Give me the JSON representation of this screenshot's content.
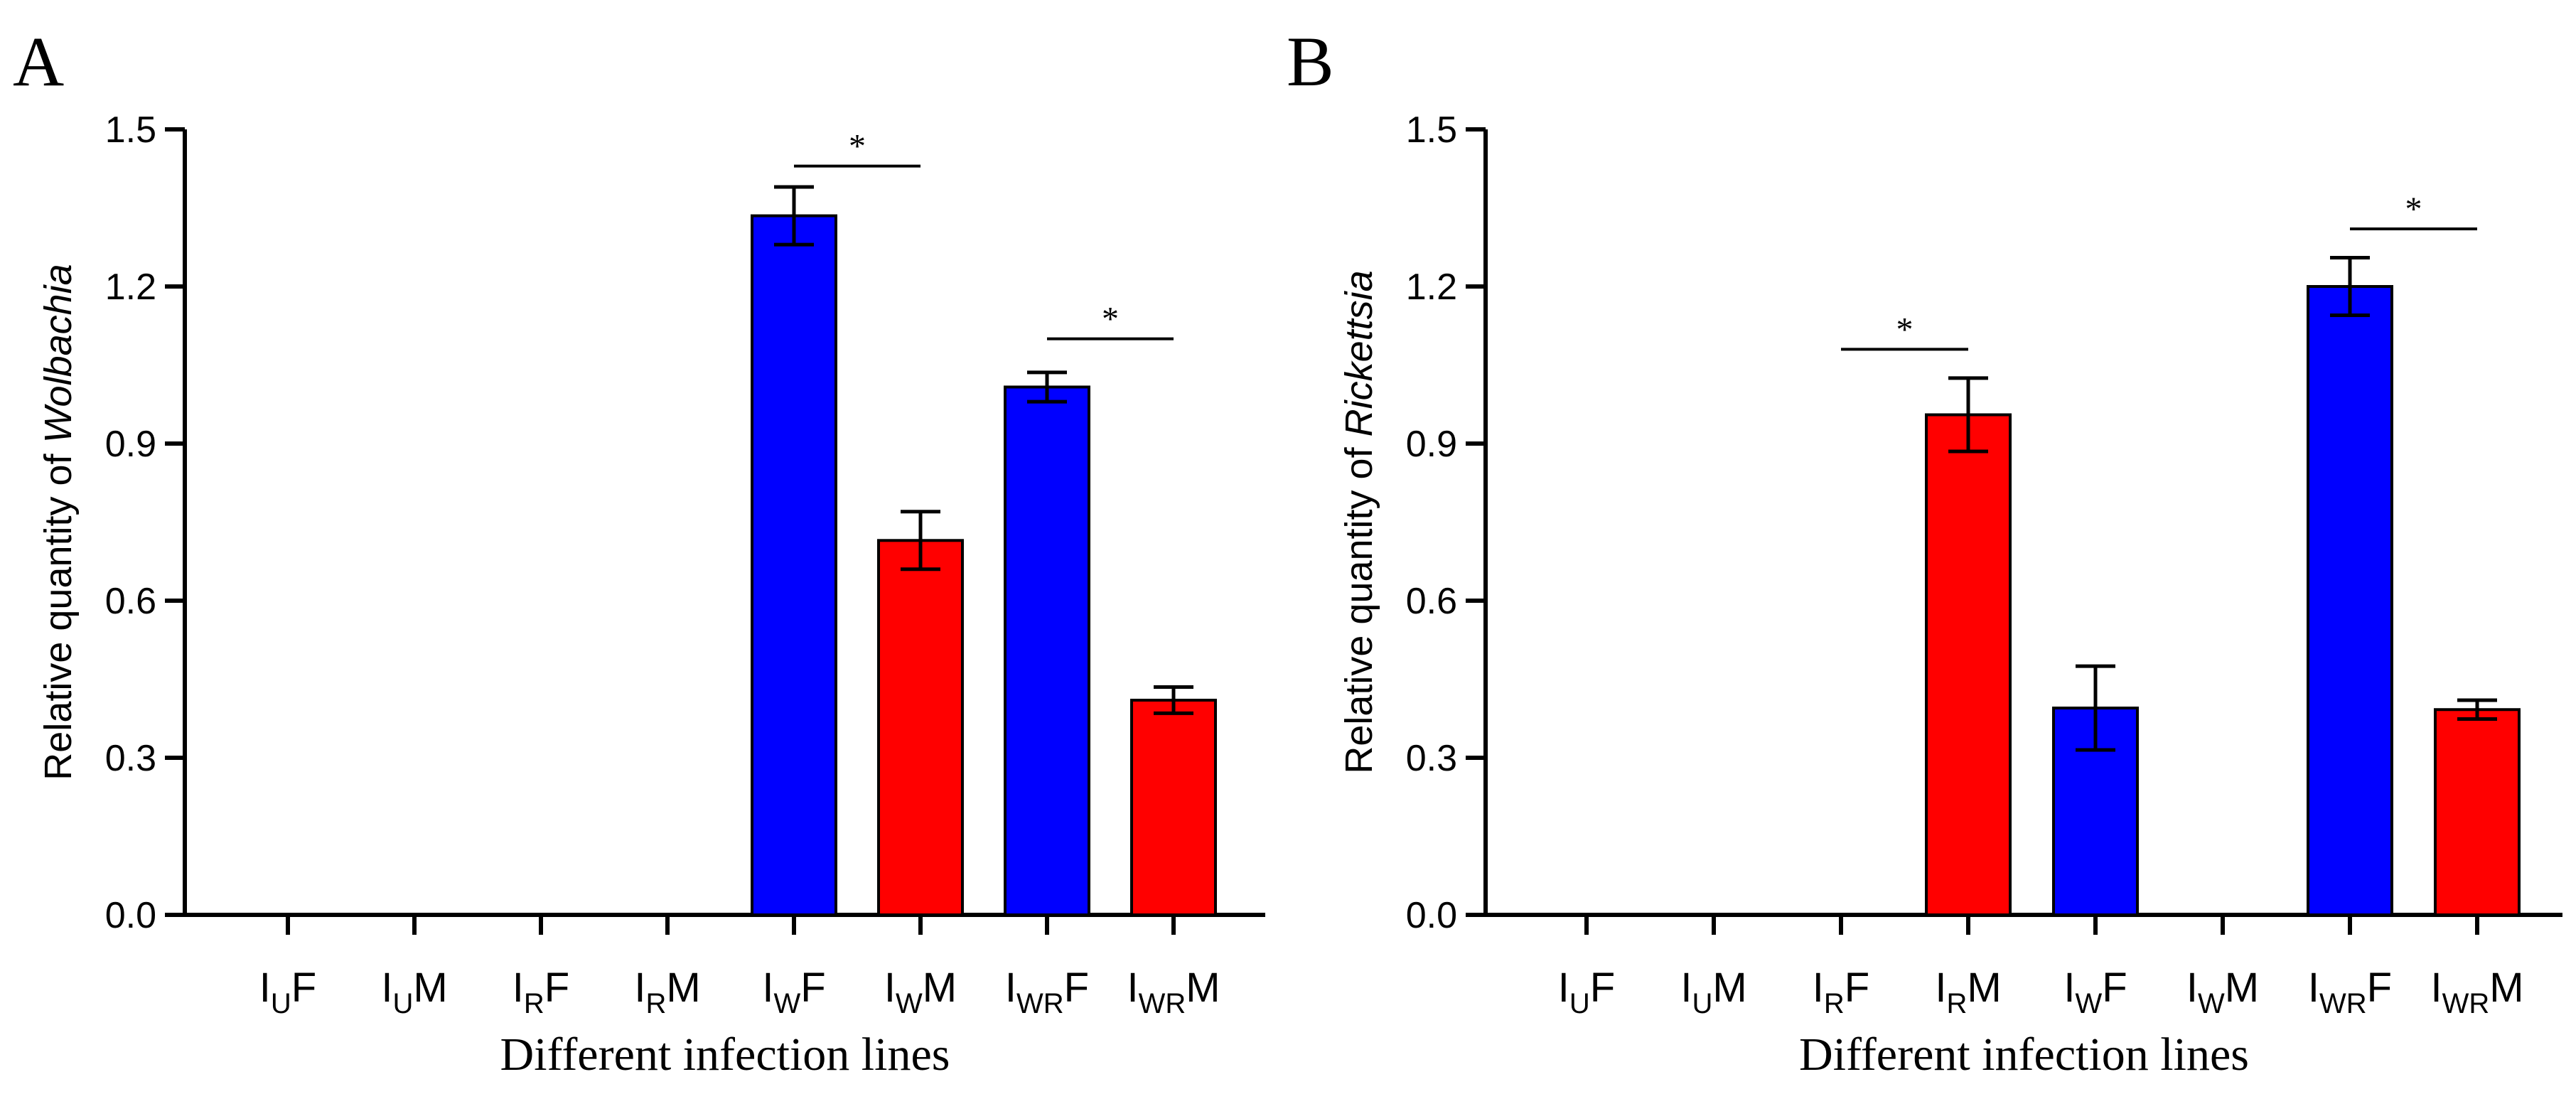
{
  "colors": {
    "female": "#0000ff",
    "male": "#ff0000",
    "axis": "#000000"
  },
  "chart_data": [
    {
      "type": "bar",
      "panel": "A",
      "xlabel": "Different infection lines",
      "ylabel_prefix": "Relative quantity of ",
      "ylabel_italic": "Wolbachia",
      "ylim": [
        0,
        1.5
      ],
      "yticks": [
        "0.0",
        "0.3",
        "0.6",
        "0.9",
        "1.2",
        "1.5"
      ],
      "categories": [
        {
          "base": "I",
          "sub": "U",
          "suffix": "F"
        },
        {
          "base": "I",
          "sub": "U",
          "suffix": "M"
        },
        {
          "base": "I",
          "sub": "R",
          "suffix": "F"
        },
        {
          "base": "I",
          "sub": "R",
          "suffix": "M"
        },
        {
          "base": "I",
          "sub": "W",
          "suffix": "F"
        },
        {
          "base": "I",
          "sub": "W",
          "suffix": "M"
        },
        {
          "base": "I",
          "sub": "WR",
          "suffix": "F"
        },
        {
          "base": "I",
          "sub": "WR",
          "suffix": "M"
        }
      ],
      "values": [
        0,
        0,
        0,
        0,
        1.335,
        0.715,
        1.008,
        0.41
      ],
      "errors": [
        0,
        0,
        0,
        0,
        0.055,
        0.055,
        0.028,
        0.025
      ],
      "bar_colors": [
        "female",
        "male",
        "female",
        "male",
        "female",
        "male",
        "female",
        "male"
      ],
      "significance": [
        {
          "from": 4,
          "to": 5,
          "label": "*",
          "y": 1.43
        },
        {
          "from": 6,
          "to": 7,
          "label": "*",
          "y": 1.1
        }
      ]
    },
    {
      "type": "bar",
      "panel": "B",
      "xlabel": "Different infection lines",
      "ylabel_prefix": "Relative quantity of ",
      "ylabel_italic": "Rickettsia",
      "ylim": [
        0,
        1.5
      ],
      "yticks": [
        "0.0",
        "0.3",
        "0.6",
        "0.9",
        "1.2",
        "1.5"
      ],
      "categories": [
        {
          "base": "I",
          "sub": "U",
          "suffix": "F"
        },
        {
          "base": "I",
          "sub": "U",
          "suffix": "M"
        },
        {
          "base": "I",
          "sub": "R",
          "suffix": "F"
        },
        {
          "base": "I",
          "sub": "R",
          "suffix": "M"
        },
        {
          "base": "I",
          "sub": "W",
          "suffix": "F"
        },
        {
          "base": "I",
          "sub": "W",
          "suffix": "M"
        },
        {
          "base": "I",
          "sub": "WR",
          "suffix": "F"
        },
        {
          "base": "I",
          "sub": "WR",
          "suffix": "M"
        }
      ],
      "values": [
        0,
        0,
        0,
        0.955,
        0.395,
        0,
        1.2,
        0.392
      ],
      "errors": [
        0,
        0,
        0,
        0.07,
        0.08,
        0,
        0.055,
        0.018
      ],
      "bar_colors": [
        "female",
        "male",
        "female",
        "male",
        "female",
        "male",
        "female",
        "male"
      ],
      "significance": [
        {
          "from": 2,
          "to": 3,
          "label": "*",
          "y": 1.08
        },
        {
          "from": 6,
          "to": 7,
          "label": "*",
          "y": 1.31
        }
      ]
    }
  ]
}
